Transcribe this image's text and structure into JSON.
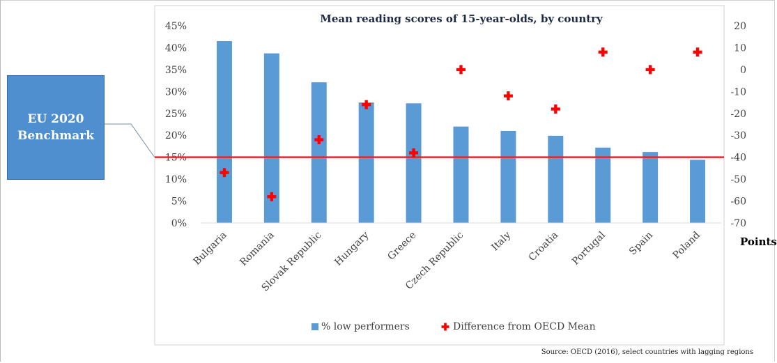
{
  "benchmark_box": {
    "label": "EU 2020 Benchmark"
  },
  "source_note": "Source: OECD (2016), select countries with lagging regions",
  "colors": {
    "bar": "#5b9bd5",
    "marker": "#ff0000",
    "benchmark_line": "#e8262a",
    "box": "#4f8fcf"
  },
  "chart_data": {
    "type": "bar",
    "title": "Mean reading scores of 15-year-olds, by country",
    "categories": [
      "Bulgaria",
      "Romania",
      "Slovak Republic",
      "Hungary",
      "Greece",
      "Czech Republic",
      "Italy",
      "Croatia",
      "Portugal",
      "Spain",
      "Poland"
    ],
    "series": [
      {
        "name": "% low performers",
        "type": "bar",
        "axis": "left",
        "values": [
          41.5,
          38.7,
          32.1,
          27.5,
          27.3,
          22.0,
          21.0,
          19.9,
          17.2,
          16.2,
          14.4
        ]
      },
      {
        "name": "Difference from OECD Mean",
        "type": "scatter",
        "axis": "right",
        "marker": "plus",
        "values": [
          -47,
          -58,
          -32,
          -16,
          -38,
          0,
          -12,
          -18,
          8,
          0,
          8
        ]
      }
    ],
    "y_left": {
      "ylim": [
        0,
        45
      ],
      "ticks": [
        "0%",
        "5%",
        "10%",
        "15%",
        "20%",
        "25%",
        "30%",
        "35%",
        "40%",
        "45%"
      ]
    },
    "y_right": {
      "ylim": [
        -70,
        20
      ],
      "label": "Points",
      "ticks": [
        "-70",
        "-60",
        "-50",
        "-40",
        "-30",
        "-20",
        "-10",
        "0",
        "10",
        "20"
      ]
    },
    "benchmark": {
      "value": 15,
      "axis": "left"
    },
    "grid": false,
    "legend": {
      "position": "bottom"
    }
  }
}
